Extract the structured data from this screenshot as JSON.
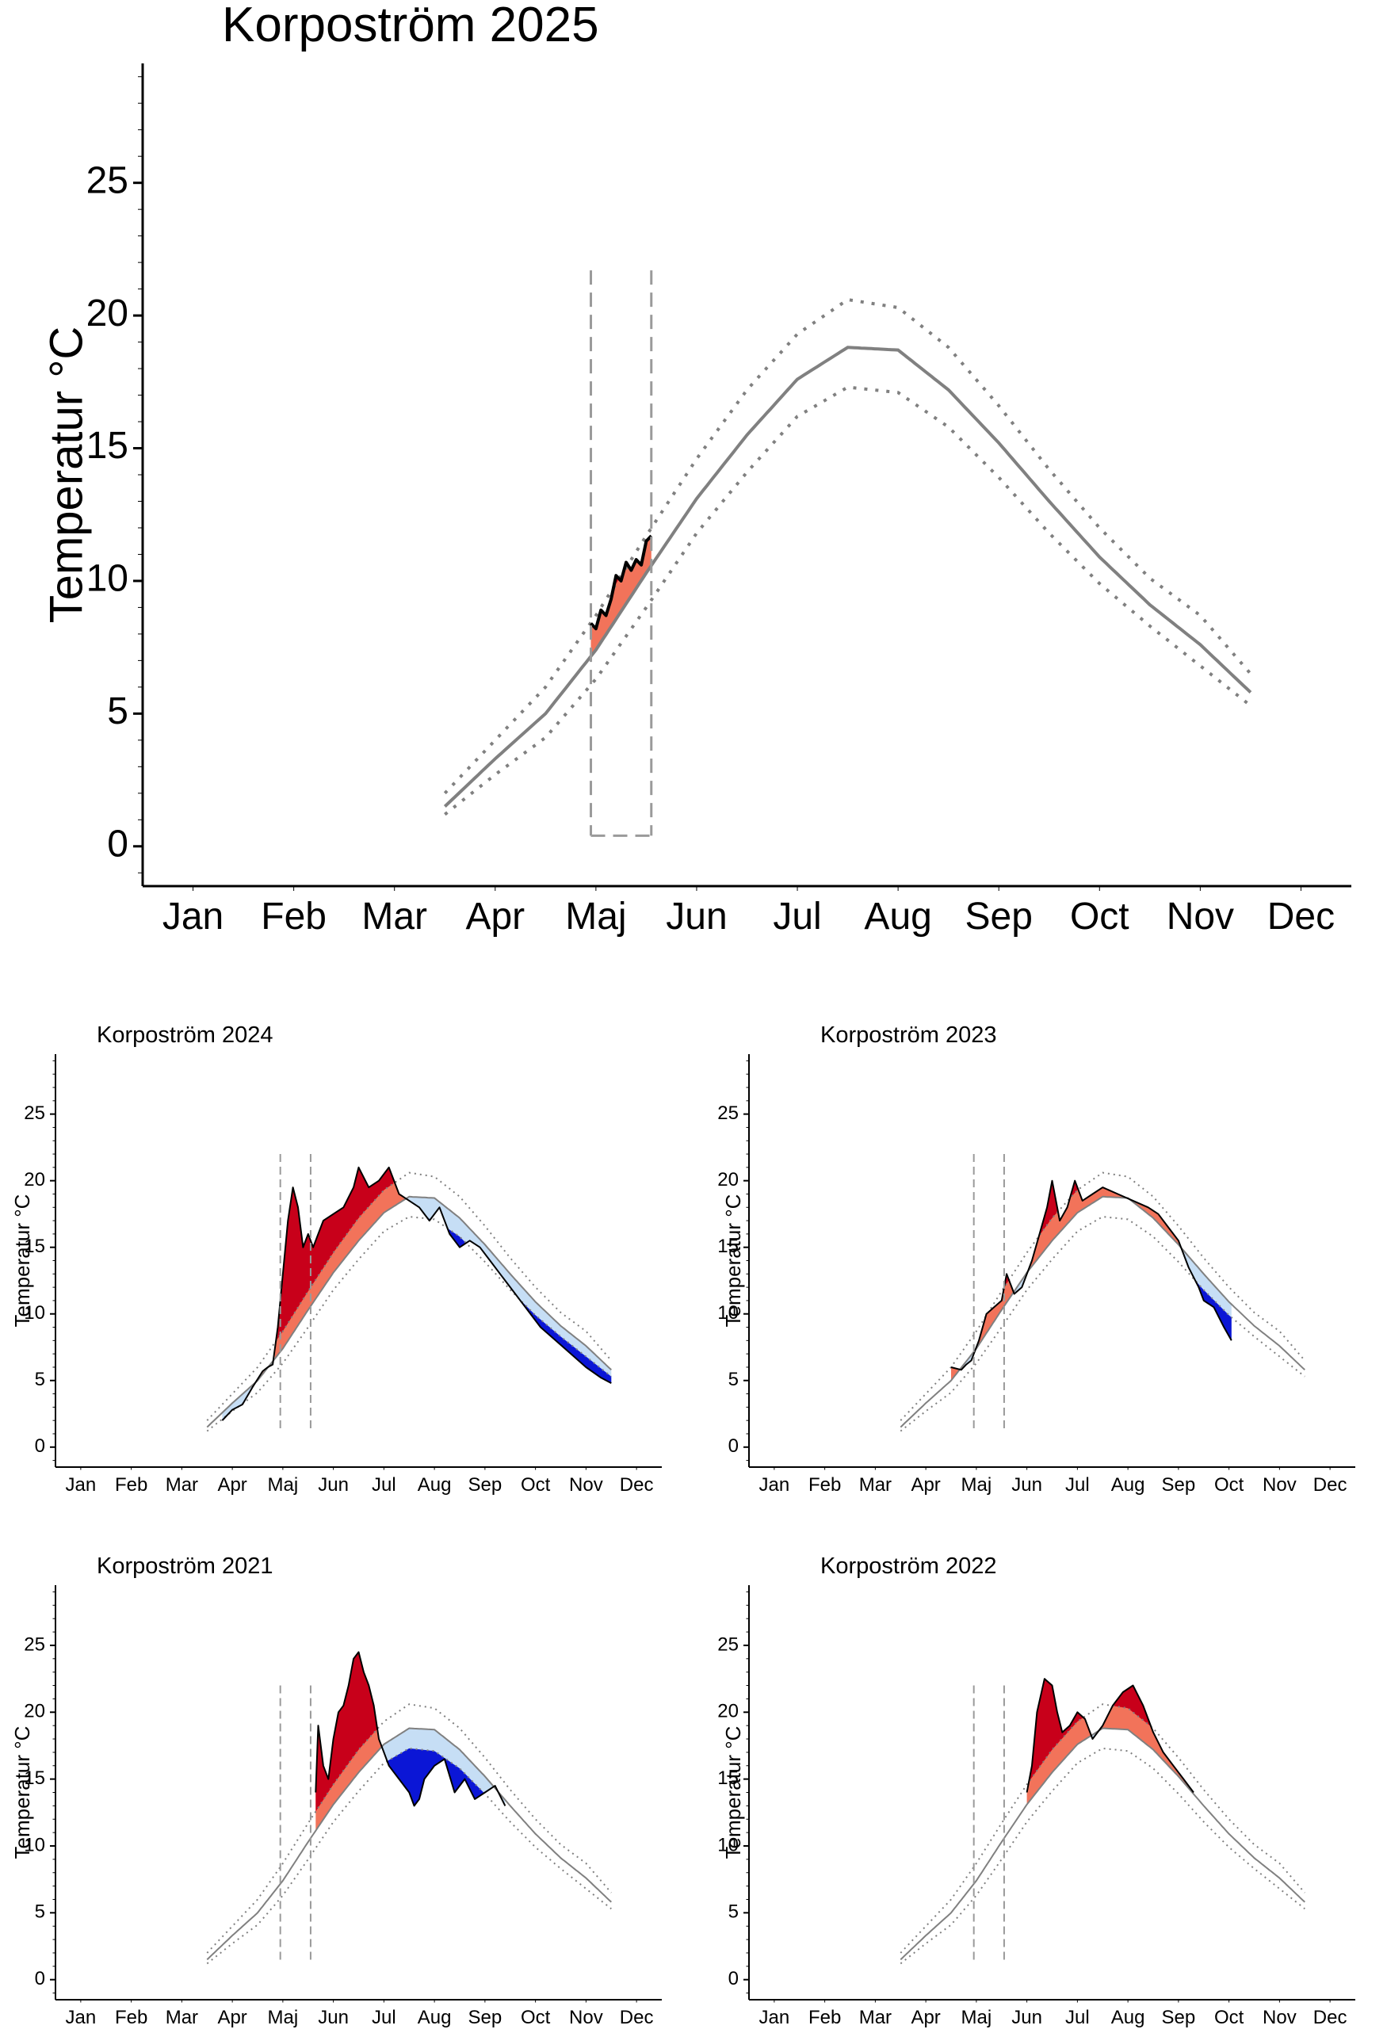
{
  "chart_data": [
    {
      "id": "main",
      "type": "line",
      "title": "Korpoström 2025",
      "ylabel": "Temperatur °C",
      "xlabel": "",
      "x_ticks": [
        "Jan",
        "Feb",
        "Mar",
        "Apr",
        "Maj",
        "Jun",
        "Jul",
        "Aug",
        "Sep",
        "Oct",
        "Nov",
        "Dec"
      ],
      "y_ticks": [
        0,
        5,
        10,
        15,
        20,
        25
      ],
      "xlim": [
        0,
        12
      ],
      "ylim": [
        -1.5,
        29.5
      ],
      "grid": false,
      "series": [
        {
          "role": "mean",
          "x": [
            3.0,
            3.5,
            4.0,
            4.5,
            5.0,
            5.5,
            6.0,
            6.5,
            7.0,
            7.5,
            8.0,
            8.5,
            9.0,
            9.5,
            10.0,
            10.5,
            11.0
          ],
          "y": [
            1.5,
            3.3,
            5.0,
            7.4,
            10.3,
            13.1,
            15.5,
            17.6,
            18.8,
            18.7,
            17.2,
            15.2,
            13.0,
            10.9,
            9.1,
            7.6,
            5.8
          ]
        },
        {
          "role": "upper",
          "x": [
            3.0,
            3.5,
            4.0,
            4.5,
            5.0,
            5.5,
            6.0,
            6.5,
            7.0,
            7.5,
            8.0,
            8.5,
            9.0,
            9.5,
            10.0,
            10.5,
            11.0
          ],
          "y": [
            2.0,
            4.0,
            6.0,
            8.7,
            11.7,
            14.6,
            17.2,
            19.3,
            20.6,
            20.3,
            18.8,
            16.6,
            14.2,
            12.0,
            10.1,
            8.7,
            6.5
          ]
        },
        {
          "role": "lower",
          "x": [
            3.0,
            3.5,
            4.0,
            4.5,
            5.0,
            5.5,
            6.0,
            6.5,
            7.0,
            7.5,
            8.0,
            8.5,
            9.0,
            9.5,
            10.0,
            10.5,
            11.0
          ],
          "y": [
            1.2,
            2.7,
            4.1,
            6.3,
            9.0,
            11.8,
            14.1,
            16.2,
            17.3,
            17.1,
            15.8,
            13.9,
            11.8,
            9.9,
            8.3,
            6.8,
            5.3
          ]
        },
        {
          "role": "observed",
          "x": [
            4.45,
            4.5,
            4.55,
            4.6,
            4.65,
            4.7,
            4.75,
            4.8,
            4.85,
            4.9,
            4.95,
            5.0,
            5.05
          ],
          "y": [
            8.4,
            8.2,
            8.9,
            8.7,
            9.3,
            10.2,
            10.0,
            10.7,
            10.4,
            10.8,
            10.6,
            11.5,
            11.7
          ]
        }
      ],
      "vlines": [
        4.45,
        5.05
      ]
    },
    {
      "id": "y2024",
      "type": "line",
      "title": "Korpoström 2024",
      "ylabel": "Temperatur °C",
      "xlabel": "",
      "x_ticks": [
        "Jan",
        "Feb",
        "Mar",
        "Apr",
        "Maj",
        "Jun",
        "Jul",
        "Aug",
        "Sep",
        "Oct",
        "Nov",
        "Dec"
      ],
      "y_ticks": [
        0,
        5,
        10,
        15,
        20,
        25
      ],
      "xlim": [
        0,
        12
      ],
      "ylim": [
        -1.5,
        29.5
      ],
      "grid": false,
      "series": [
        {
          "role": "observed",
          "x": [
            3.3,
            3.5,
            3.7,
            3.9,
            4.1,
            4.2,
            4.3,
            4.4,
            4.5,
            4.6,
            4.7,
            4.8,
            4.9,
            5.0,
            5.1,
            5.2,
            5.3,
            5.5,
            5.7,
            5.9,
            6.0,
            6.2,
            6.4,
            6.6,
            6.8,
            7.0,
            7.2,
            7.4,
            7.6,
            7.8,
            8.0,
            8.2,
            8.4,
            8.6,
            8.8,
            9.0,
            9.3,
            9.6,
            9.9,
            10.2,
            10.5,
            10.8,
            11.0
          ],
          "y": [
            2.0,
            2.8,
            3.2,
            4.5,
            5.7,
            6.0,
            6.2,
            9.0,
            13.0,
            17.0,
            19.5,
            18.0,
            15.0,
            16.0,
            15.0,
            16.0,
            17.0,
            17.5,
            18.0,
            19.5,
            21.0,
            19.5,
            20.0,
            21.0,
            19.0,
            18.5,
            18.0,
            17.0,
            18.0,
            16.0,
            15.0,
            15.5,
            15.0,
            14.0,
            13.0,
            12.0,
            10.5,
            9.0,
            8.0,
            7.0,
            6.0,
            5.2,
            4.8
          ]
        }
      ],
      "vlines": [
        4.45,
        5.05
      ]
    },
    {
      "id": "y2023",
      "type": "line",
      "title": "Korpoström 2023",
      "ylabel": "Temperatur °C",
      "xlabel": "",
      "x_ticks": [
        "Jan",
        "Feb",
        "Mar",
        "Apr",
        "Maj",
        "Jun",
        "Jul",
        "Aug",
        "Sep",
        "Oct",
        "Nov",
        "Dec"
      ],
      "y_ticks": [
        0,
        5,
        10,
        15,
        20,
        25
      ],
      "xlim": [
        0,
        12
      ],
      "ylim": [
        -1.5,
        29.5
      ],
      "grid": false,
      "series": [
        {
          "role": "observed",
          "x": [
            4.0,
            4.2,
            4.3,
            4.4,
            4.55,
            4.7,
            4.85,
            5.0,
            5.1,
            5.25,
            5.4,
            5.6,
            5.75,
            5.9,
            6.0,
            6.15,
            6.3,
            6.45,
            6.6,
            6.8,
            7.0,
            7.3,
            7.6,
            7.9,
            8.1,
            8.3,
            8.5,
            8.7,
            8.9,
            9.0,
            9.2,
            9.4,
            9.55
          ],
          "y": [
            6.0,
            5.8,
            6.2,
            6.5,
            8.0,
            10.0,
            10.5,
            11.0,
            13.0,
            11.5,
            12.0,
            14.0,
            16.0,
            18.0,
            20.0,
            17.0,
            18.0,
            20.0,
            18.5,
            19.0,
            19.5,
            19.0,
            18.5,
            18.0,
            17.5,
            16.5,
            15.5,
            13.5,
            12.0,
            11.0,
            10.5,
            9.0,
            8.0
          ]
        }
      ],
      "vlines": [
        4.45,
        5.05
      ]
    },
    {
      "id": "y2021",
      "type": "line",
      "title": "Korpoström 2021",
      "ylabel": "Temperatur °C",
      "xlabel": "",
      "x_ticks": [
        "Jan",
        "Feb",
        "Mar",
        "Apr",
        "Maj",
        "Jun",
        "Jul",
        "Aug",
        "Sep",
        "Oct",
        "Nov",
        "Dec"
      ],
      "y_ticks": [
        0,
        5,
        10,
        15,
        20,
        25
      ],
      "xlim": [
        0,
        12
      ],
      "ylim": [
        -1.5,
        29.5
      ],
      "grid": false,
      "series": [
        {
          "role": "observed",
          "x": [
            5.15,
            5.2,
            5.3,
            5.4,
            5.5,
            5.6,
            5.7,
            5.8,
            5.9,
            6.0,
            6.1,
            6.2,
            6.3,
            6.4,
            6.5,
            6.6,
            6.8,
            7.0,
            7.1,
            7.2,
            7.3,
            7.5,
            7.7,
            7.9,
            8.1,
            8.3,
            8.5,
            8.7,
            8.9
          ],
          "y": [
            14.0,
            19.0,
            16.0,
            15.0,
            18.0,
            20.0,
            20.5,
            22.0,
            24.0,
            24.5,
            23.0,
            22.0,
            20.5,
            18.0,
            17.0,
            16.0,
            15.0,
            14.0,
            13.0,
            13.5,
            15.0,
            16.0,
            16.5,
            14.0,
            15.0,
            13.5,
            14.0,
            14.5,
            13.0
          ]
        }
      ],
      "vlines": [
        4.45,
        5.05
      ]
    },
    {
      "id": "y2022",
      "type": "line",
      "title": "Korpoström 2022",
      "ylabel": "Temperatur °C",
      "xlabel": "",
      "x_ticks": [
        "Jan",
        "Feb",
        "Mar",
        "Apr",
        "Maj",
        "Jun",
        "Jul",
        "Aug",
        "Sep",
        "Oct",
        "Nov",
        "Dec"
      ],
      "y_ticks": [
        0,
        5,
        10,
        15,
        20,
        25
      ],
      "xlim": [
        0,
        12
      ],
      "ylim": [
        -1.5,
        29.5
      ],
      "grid": false,
      "series": [
        {
          "role": "observed",
          "x": [
            5.5,
            5.6,
            5.7,
            5.85,
            6.0,
            6.1,
            6.2,
            6.35,
            6.5,
            6.65,
            6.8,
            7.0,
            7.2,
            7.4,
            7.6,
            7.8,
            8.0,
            8.2,
            8.4,
            8.6,
            8.8
          ],
          "y": [
            14.0,
            16.0,
            20.0,
            22.5,
            22.0,
            20.0,
            18.5,
            19.0,
            20.0,
            19.5,
            18.0,
            19.0,
            20.5,
            21.5,
            22.0,
            20.5,
            18.5,
            17.0,
            16.0,
            15.0,
            14.0
          ]
        }
      ],
      "vlines": [
        4.45,
        5.05
      ]
    }
  ],
  "colors": {
    "mean_line": "#808080",
    "band_line": "#808080",
    "observed_line": "#000000",
    "above_band": "#f2735a",
    "above_upper": "#c8001a",
    "below_band": "#c6def5",
    "below_lower": "#0b16d6",
    "window_line": "#9a9a9a"
  }
}
